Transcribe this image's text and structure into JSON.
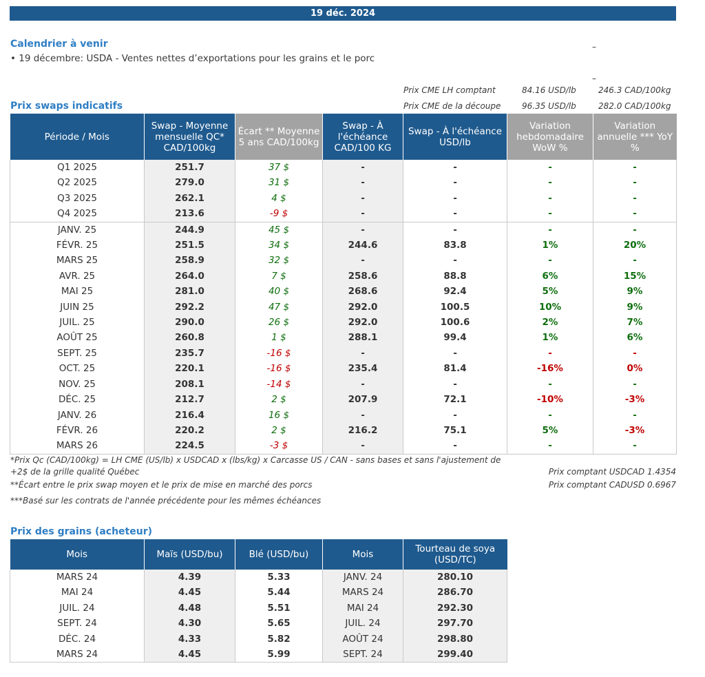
{
  "banner_date": "19 déc. 2024",
  "calendar": {
    "title": "Calendrier à venir",
    "item": "• 19 décembre: USDA - Ventes nettes d’exportations pour les grains et le porc",
    "dash1": "–",
    "dash2": "–"
  },
  "cme": {
    "row1_label": "Prix CME LH comptant",
    "row1_usd": "84.16 USD/lb",
    "row1_cad": "246.3 CAD/100kg",
    "row2_label": "Prix CME de la découpe",
    "row2_usd": "96.35 USD/lb",
    "row2_cad": "282.0 CAD/100kg"
  },
  "swaps": {
    "title": "Prix swaps indicatifs",
    "headers": [
      "Période / Mois",
      "Swap - Moyenne mensuelle QC* CAD/100kg",
      "Écart ** Moyenne 5 ans CAD/100kg",
      "Swap - À l'échéance CAD/100 KG",
      "Swap - À l'échéance USD/lb",
      "Variation hebdomadaire WoW %",
      "Variation annuelle *** YoY %"
    ],
    "rows": [
      {
        "period": "Q1 2025",
        "swap": "251.7",
        "ecart": "37 $",
        "ecart_s": "pos",
        "cad": "-",
        "usd": "-",
        "wow": "-",
        "wow_s": "pos",
        "yoy": "-",
        "yoy_s": "pos"
      },
      {
        "period": "Q2 2025",
        "swap": "279.0",
        "ecart": "31 $",
        "ecart_s": "pos",
        "cad": "-",
        "usd": "-",
        "wow": "-",
        "wow_s": "pos",
        "yoy": "-",
        "yoy_s": "pos"
      },
      {
        "period": "Q3 2025",
        "swap": "262.1",
        "ecart": "4 $",
        "ecart_s": "pos",
        "cad": "-",
        "usd": "-",
        "wow": "-",
        "wow_s": "pos",
        "yoy": "-",
        "yoy_s": "pos"
      },
      {
        "period": "Q4 2025",
        "swap": "213.6",
        "ecart": "-9 $",
        "ecart_s": "neg",
        "cad": "-",
        "usd": "-",
        "wow": "-",
        "wow_s": "pos",
        "yoy": "-",
        "yoy_s": "pos"
      },
      {
        "period": "JANV. 25",
        "swap": "244.9",
        "ecart": "45 $",
        "ecart_s": "pos",
        "cad": "-",
        "usd": "-",
        "wow": "-",
        "wow_s": "pos",
        "yoy": "-",
        "yoy_s": "pos"
      },
      {
        "period": "FÉVR. 25",
        "swap": "251.5",
        "ecart": "34 $",
        "ecart_s": "pos",
        "cad": "244.6",
        "usd": "83.8",
        "wow": "1%",
        "wow_s": "pos",
        "yoy": "20%",
        "yoy_s": "pos"
      },
      {
        "period": "MARS 25",
        "swap": "258.9",
        "ecart": "32 $",
        "ecart_s": "pos",
        "cad": "-",
        "usd": "-",
        "wow": "-",
        "wow_s": "pos",
        "yoy": "-",
        "yoy_s": "pos"
      },
      {
        "period": "AVR. 25",
        "swap": "264.0",
        "ecart": "7 $",
        "ecart_s": "pos",
        "cad": "258.6",
        "usd": "88.8",
        "wow": "6%",
        "wow_s": "pos",
        "yoy": "15%",
        "yoy_s": "pos"
      },
      {
        "period": "MAI 25",
        "swap": "281.0",
        "ecart": "40 $",
        "ecart_s": "pos",
        "cad": "268.6",
        "usd": "92.4",
        "wow": "5%",
        "wow_s": "pos",
        "yoy": "9%",
        "yoy_s": "pos"
      },
      {
        "period": "JUIN 25",
        "swap": "292.2",
        "ecart": "47 $",
        "ecart_s": "pos",
        "cad": "292.0",
        "usd": "100.5",
        "wow": "10%",
        "wow_s": "pos",
        "yoy": "9%",
        "yoy_s": "pos"
      },
      {
        "period": "JUIL. 25",
        "swap": "290.0",
        "ecart": "26 $",
        "ecart_s": "pos",
        "cad": "292.0",
        "usd": "100.6",
        "wow": "2%",
        "wow_s": "pos",
        "yoy": "7%",
        "yoy_s": "pos"
      },
      {
        "period": "AOÛT 25",
        "swap": "260.8",
        "ecart": "1 $",
        "ecart_s": "pos",
        "cad": "288.1",
        "usd": "99.4",
        "wow": "1%",
        "wow_s": "pos",
        "yoy": "6%",
        "yoy_s": "pos"
      },
      {
        "period": "SEPT. 25",
        "swap": "235.7",
        "ecart": "-16 $",
        "ecart_s": "neg",
        "cad": "-",
        "usd": "-",
        "wow": "-",
        "wow_s": "neg",
        "yoy": "-",
        "yoy_s": "neg"
      },
      {
        "period": "OCT. 25",
        "swap": "220.1",
        "ecart": "-16 $",
        "ecart_s": "neg",
        "cad": "235.4",
        "usd": "81.4",
        "wow": "-16%",
        "wow_s": "neg",
        "yoy": "0%",
        "yoy_s": "neg"
      },
      {
        "period": "NOV. 25",
        "swap": "208.1",
        "ecart": "-14 $",
        "ecart_s": "neg",
        "cad": "-",
        "usd": "-",
        "wow": "-",
        "wow_s": "pos",
        "yoy": "-",
        "yoy_s": "pos"
      },
      {
        "period": "DÉC. 25",
        "swap": "212.7",
        "ecart": "2 $",
        "ecart_s": "pos",
        "cad": "207.9",
        "usd": "72.1",
        "wow": "-10%",
        "wow_s": "neg",
        "yoy": "-3%",
        "yoy_s": "neg"
      },
      {
        "period": "JANV. 26",
        "swap": "216.4",
        "ecart": "16 $",
        "ecart_s": "pos",
        "cad": "-",
        "usd": "-",
        "wow": "-",
        "wow_s": "pos",
        "yoy": "-",
        "yoy_s": "pos"
      },
      {
        "period": "FÉVR. 26",
        "swap": "220.2",
        "ecart": "2 $",
        "ecart_s": "pos",
        "cad": "216.2",
        "usd": "75.1",
        "wow": "5%",
        "wow_s": "pos",
        "yoy": "-3%",
        "yoy_s": "neg"
      },
      {
        "period": "MARS 26",
        "swap": "224.5",
        "ecart": "-3 $",
        "ecart_s": "neg",
        "cad": "-",
        "usd": "-",
        "wow": "-",
        "wow_s": "pos",
        "yoy": "-",
        "yoy_s": "pos"
      }
    ]
  },
  "notes": {
    "n1_line1": "*Prix Qc (CAD/100kg) = LH CME (US/lb) x USDCAD x (lbs/kg) x Carcasse US / CAN - sans bases et sans l'ajustement de",
    "n1_line2": "+2$ de la grille qualité Québec",
    "n2": "**Écart entre le prix swap moyen et le prix de mise en marché des porcs",
    "n3": "***Basé sur les contrats de l'année précédente pour les mêmes échéances",
    "fx1": "Prix comptant USDCAD 1.4354",
    "fx2": "Prix comptant CADUSD 0.6967"
  },
  "grains": {
    "title": "Prix des grains (acheteur)",
    "headers": [
      "Mois",
      "Maïs (USD/bu)",
      "Blé (USD/bu)",
      "Mois",
      "Tourteau de soya (USD/TC)"
    ],
    "rows": [
      {
        "m1": "MARS 24",
        "mais": "4.39",
        "ble": "5.33",
        "m2": "JANV. 24",
        "soya": "280.10"
      },
      {
        "m1": "MAI 24",
        "mais": "4.45",
        "ble": "5.44",
        "m2": "MARS 24",
        "soya": "286.70"
      },
      {
        "m1": "JUIL. 24",
        "mais": "4.48",
        "ble": "5.51",
        "m2": "MAI 24",
        "soya": "292.30"
      },
      {
        "m1": "SEPT. 24",
        "mais": "4.30",
        "ble": "5.65",
        "m2": "JUIL. 24",
        "soya": "297.70"
      },
      {
        "m1": "DÉC. 24",
        "mais": "4.33",
        "ble": "5.82",
        "m2": "AOÛT 24",
        "soya": "298.80"
      },
      {
        "m1": "MARS 24",
        "mais": "4.45",
        "ble": "5.99",
        "m2": "SEPT. 24",
        "soya": "299.40"
      }
    ]
  }
}
